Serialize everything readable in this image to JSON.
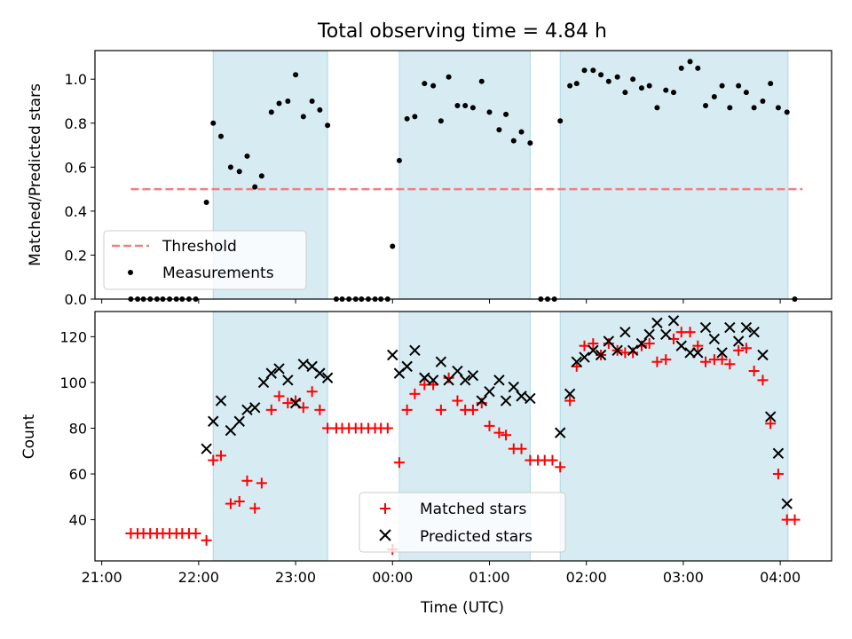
{
  "figure": {
    "title": "Total observing time = 4.84 h",
    "xlabel": "Time (UTC)",
    "x_tick_labels": [
      "21:00",
      "22:00",
      "23:00",
      "00:00",
      "01:00",
      "02:00",
      "03:00",
      "04:00"
    ]
  },
  "colors": {
    "shading": "#add8e6",
    "threshold": "#f08080",
    "measurement": "#000000",
    "matched": "#ff0000",
    "predicted": "#000000"
  },
  "chart_data": [
    {
      "type": "scatter",
      "panel": "top",
      "ylabel": "Matched/Predicted stars",
      "xlabel": "",
      "x_unit": "hours from 21:00 UTC",
      "xlim": [
        -0.07,
        7.53
      ],
      "ylim": [
        0,
        1.13
      ],
      "y_ticks": [
        0.0,
        0.2,
        0.4,
        0.6,
        0.8,
        1.0
      ],
      "y_tick_labels": [
        "0.0",
        "0.2",
        "0.4",
        "0.6",
        "0.8",
        "1.0"
      ],
      "grid": false,
      "legend": {
        "placement": "lower left",
        "entries": [
          "Threshold",
          "Measurements"
        ]
      },
      "threshold": {
        "name": "Threshold",
        "y": 0.5,
        "x_range": [
          0.3,
          7.23
        ]
      },
      "shaded_intervals": [
        [
          1.15,
          2.33
        ],
        [
          3.07,
          4.42
        ],
        [
          4.73,
          7.08
        ]
      ],
      "series": [
        {
          "name": "Measurements",
          "points": [
            [
              0.3,
              0.0
            ],
            [
              0.37,
              0.0
            ],
            [
              0.43,
              0.0
            ],
            [
              0.5,
              0.0
            ],
            [
              0.57,
              0.0
            ],
            [
              0.63,
              0.0
            ],
            [
              0.7,
              0.0
            ],
            [
              0.77,
              0.0
            ],
            [
              0.83,
              0.0
            ],
            [
              0.9,
              0.0
            ],
            [
              0.97,
              0.0
            ],
            [
              1.08,
              0.44
            ],
            [
              1.15,
              0.8
            ],
            [
              1.23,
              0.74
            ],
            [
              1.33,
              0.6
            ],
            [
              1.42,
              0.58
            ],
            [
              1.5,
              0.65
            ],
            [
              1.58,
              0.51
            ],
            [
              1.65,
              0.56
            ],
            [
              1.75,
              0.85
            ],
            [
              1.83,
              0.89
            ],
            [
              1.92,
              0.9
            ],
            [
              2.0,
              1.02
            ],
            [
              2.08,
              0.83
            ],
            [
              2.17,
              0.9
            ],
            [
              2.25,
              0.86
            ],
            [
              2.33,
              0.79
            ],
            [
              2.42,
              0.0
            ],
            [
              2.48,
              0.0
            ],
            [
              2.55,
              0.0
            ],
            [
              2.62,
              0.0
            ],
            [
              2.68,
              0.0
            ],
            [
              2.75,
              0.0
            ],
            [
              2.82,
              0.0
            ],
            [
              2.88,
              0.0
            ],
            [
              2.95,
              0.0
            ],
            [
              3.0,
              0.24
            ],
            [
              3.07,
              0.63
            ],
            [
              3.15,
              0.82
            ],
            [
              3.23,
              0.83
            ],
            [
              3.33,
              0.98
            ],
            [
              3.42,
              0.97
            ],
            [
              3.5,
              0.81
            ],
            [
              3.58,
              1.01
            ],
            [
              3.67,
              0.88
            ],
            [
              3.75,
              0.88
            ],
            [
              3.83,
              0.87
            ],
            [
              3.92,
              0.99
            ],
            [
              4.0,
              0.85
            ],
            [
              4.1,
              0.77
            ],
            [
              4.17,
              0.84
            ],
            [
              4.25,
              0.72
            ],
            [
              4.33,
              0.76
            ],
            [
              4.42,
              0.71
            ],
            [
              4.53,
              0.0
            ],
            [
              4.6,
              0.0
            ],
            [
              4.67,
              0.0
            ],
            [
              4.73,
              0.81
            ],
            [
              4.83,
              0.97
            ],
            [
              4.9,
              0.98
            ],
            [
              4.98,
              1.04
            ],
            [
              5.07,
              1.04
            ],
            [
              5.15,
              1.02
            ],
            [
              5.23,
              0.99
            ],
            [
              5.32,
              1.01
            ],
            [
              5.4,
              0.94
            ],
            [
              5.48,
              1.0
            ],
            [
              5.57,
              0.96
            ],
            [
              5.65,
              0.97
            ],
            [
              5.73,
              0.87
            ],
            [
              5.82,
              0.95
            ],
            [
              5.9,
              0.94
            ],
            [
              5.98,
              1.05
            ],
            [
              6.07,
              1.08
            ],
            [
              6.15,
              1.05
            ],
            [
              6.23,
              0.88
            ],
            [
              6.32,
              0.92
            ],
            [
              6.4,
              0.97
            ],
            [
              6.48,
              0.87
            ],
            [
              6.57,
              0.97
            ],
            [
              6.65,
              0.94
            ],
            [
              6.73,
              0.87
            ],
            [
              6.82,
              0.9
            ],
            [
              6.9,
              0.98
            ],
            [
              6.98,
              0.87
            ],
            [
              7.07,
              0.85
            ],
            [
              7.15,
              0.0
            ]
          ]
        }
      ]
    },
    {
      "type": "scatter",
      "panel": "bottom",
      "ylabel": "Count",
      "xlabel": "Time (UTC)",
      "x_unit": "hours from 21:00 UTC",
      "xlim": [
        -0.07,
        7.53
      ],
      "ylim": [
        22,
        131
      ],
      "y_ticks": [
        40,
        60,
        80,
        100,
        120
      ],
      "y_tick_labels": [
        "40",
        "60",
        "80",
        "100",
        "120"
      ],
      "grid": false,
      "legend": {
        "placement": "lower center",
        "entries": [
          "Matched stars",
          "Predicted stars"
        ]
      },
      "shaded_intervals": [
        [
          1.15,
          2.33
        ],
        [
          3.07,
          4.42
        ],
        [
          4.73,
          7.08
        ]
      ],
      "series": [
        {
          "name": "Matched stars",
          "marker": "plus",
          "points": [
            [
              0.3,
              34
            ],
            [
              0.37,
              34
            ],
            [
              0.43,
              34
            ],
            [
              0.5,
              34
            ],
            [
              0.57,
              34
            ],
            [
              0.63,
              34
            ],
            [
              0.7,
              34
            ],
            [
              0.77,
              34
            ],
            [
              0.83,
              34
            ],
            [
              0.9,
              34
            ],
            [
              0.97,
              34
            ],
            [
              1.08,
              31
            ],
            [
              1.15,
              66
            ],
            [
              1.23,
              68
            ],
            [
              1.33,
              47
            ],
            [
              1.42,
              48
            ],
            [
              1.5,
              57
            ],
            [
              1.58,
              45
            ],
            [
              1.65,
              56
            ],
            [
              1.75,
              88
            ],
            [
              1.83,
              94
            ],
            [
              1.92,
              91
            ],
            [
              2.0,
              92
            ],
            [
              2.08,
              89
            ],
            [
              2.17,
              96
            ],
            [
              2.25,
              88
            ],
            [
              2.33,
              80
            ],
            [
              2.42,
              80
            ],
            [
              2.48,
              80
            ],
            [
              2.55,
              80
            ],
            [
              2.62,
              80
            ],
            [
              2.68,
              80
            ],
            [
              2.75,
              80
            ],
            [
              2.82,
              80
            ],
            [
              2.88,
              80
            ],
            [
              2.95,
              80
            ],
            [
              3.0,
              27
            ],
            [
              3.07,
              65
            ],
            [
              3.15,
              88
            ],
            [
              3.23,
              95
            ],
            [
              3.33,
              99
            ],
            [
              3.42,
              99
            ],
            [
              3.5,
              88
            ],
            [
              3.58,
              102
            ],
            [
              3.67,
              92
            ],
            [
              3.75,
              88
            ],
            [
              3.83,
              88
            ],
            [
              3.92,
              91
            ],
            [
              4.0,
              81
            ],
            [
              4.1,
              78
            ],
            [
              4.17,
              77
            ],
            [
              4.25,
              71
            ],
            [
              4.33,
              71
            ],
            [
              4.42,
              66
            ],
            [
              4.5,
              66
            ],
            [
              4.57,
              66
            ],
            [
              4.65,
              66
            ],
            [
              4.73,
              63
            ],
            [
              4.83,
              92
            ],
            [
              4.9,
              107
            ],
            [
              4.98,
              116
            ],
            [
              5.07,
              117
            ],
            [
              5.15,
              112
            ],
            [
              5.23,
              117
            ],
            [
              5.32,
              114
            ],
            [
              5.4,
              113
            ],
            [
              5.48,
              113
            ],
            [
              5.57,
              116
            ],
            [
              5.65,
              117
            ],
            [
              5.73,
              109
            ],
            [
              5.82,
              110
            ],
            [
              5.9,
              119
            ],
            [
              5.98,
              122
            ],
            [
              6.07,
              122
            ],
            [
              6.15,
              116
            ],
            [
              6.23,
              109
            ],
            [
              6.32,
              110
            ],
            [
              6.4,
              110
            ],
            [
              6.48,
              108
            ],
            [
              6.57,
              114
            ],
            [
              6.65,
              115
            ],
            [
              6.73,
              105
            ],
            [
              6.82,
              101
            ],
            [
              6.9,
              82
            ],
            [
              6.98,
              60
            ],
            [
              7.07,
              40
            ],
            [
              7.15,
              40
            ]
          ]
        },
        {
          "name": "Predicted stars",
          "marker": "x",
          "points": [
            [
              1.08,
              71
            ],
            [
              1.15,
              83
            ],
            [
              1.23,
              92
            ],
            [
              1.33,
              79
            ],
            [
              1.42,
              83
            ],
            [
              1.5,
              88
            ],
            [
              1.58,
              89
            ],
            [
              1.67,
              100
            ],
            [
              1.75,
              104
            ],
            [
              1.83,
              106
            ],
            [
              1.92,
              101
            ],
            [
              2.0,
              91
            ],
            [
              2.08,
              108
            ],
            [
              2.17,
              107
            ],
            [
              2.25,
              104
            ],
            [
              2.33,
              102
            ],
            [
              3.0,
              112
            ],
            [
              3.07,
              104
            ],
            [
              3.15,
              107
            ],
            [
              3.23,
              114
            ],
            [
              3.33,
              102
            ],
            [
              3.42,
              101
            ],
            [
              3.5,
              109
            ],
            [
              3.58,
              101
            ],
            [
              3.67,
              105
            ],
            [
              3.75,
              101
            ],
            [
              3.83,
              103
            ],
            [
              3.92,
              92
            ],
            [
              4.0,
              96
            ],
            [
              4.1,
              101
            ],
            [
              4.17,
              92
            ],
            [
              4.25,
              98
            ],
            [
              4.33,
              94
            ],
            [
              4.42,
              93
            ],
            [
              4.73,
              78
            ],
            [
              4.83,
              95
            ],
            [
              4.9,
              109
            ],
            [
              4.98,
              111
            ],
            [
              5.07,
              114
            ],
            [
              5.15,
              112
            ],
            [
              5.23,
              118
            ],
            [
              5.32,
              114
            ],
            [
              5.4,
              122
            ],
            [
              5.48,
              114
            ],
            [
              5.57,
              117
            ],
            [
              5.65,
              121
            ],
            [
              5.73,
              126
            ],
            [
              5.82,
              121
            ],
            [
              5.9,
              127
            ],
            [
              5.98,
              116
            ],
            [
              6.07,
              113
            ],
            [
              6.15,
              113
            ],
            [
              6.23,
              124
            ],
            [
              6.32,
              119
            ],
            [
              6.4,
              113
            ],
            [
              6.48,
              124
            ],
            [
              6.57,
              118
            ],
            [
              6.65,
              124
            ],
            [
              6.73,
              122
            ],
            [
              6.82,
              112
            ],
            [
              6.9,
              85
            ],
            [
              6.98,
              69
            ],
            [
              7.07,
              47
            ]
          ]
        }
      ]
    }
  ]
}
